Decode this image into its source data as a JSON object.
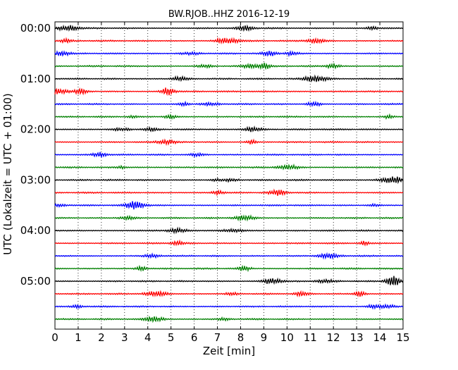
{
  "chart_data": {
    "type": "line",
    "title": "BW.RJOB..HHZ 2016-12-19",
    "xlabel": "Zeit  [min]",
    "ylabel": "UTC (Lokalzeit = UTC + 01:00)",
    "xlim": [
      0,
      15
    ],
    "xticks": [
      0,
      1,
      2,
      3,
      4,
      5,
      6,
      7,
      8,
      9,
      10,
      11,
      12,
      13,
      14,
      15
    ],
    "xtick_labels": [
      "0",
      "1",
      "2",
      "3",
      "4",
      "5",
      "6",
      "7",
      "8",
      "9",
      "10",
      "11",
      "12",
      "13",
      "14",
      "15"
    ],
    "yticks_hours": [
      0,
      1,
      2,
      3,
      4,
      5
    ],
    "ytick_labels": [
      "00:00",
      "01:00",
      "02:00",
      "03:00",
      "04:00",
      "05:00"
    ],
    "ylim_hours": [
      0,
      6
    ],
    "trace_interval_min": 15,
    "trace_count": 24,
    "trace_colors": [
      "#000000",
      "#ff0000",
      "#0000ff",
      "#008000"
    ],
    "grid": "vertical-dotted"
  }
}
